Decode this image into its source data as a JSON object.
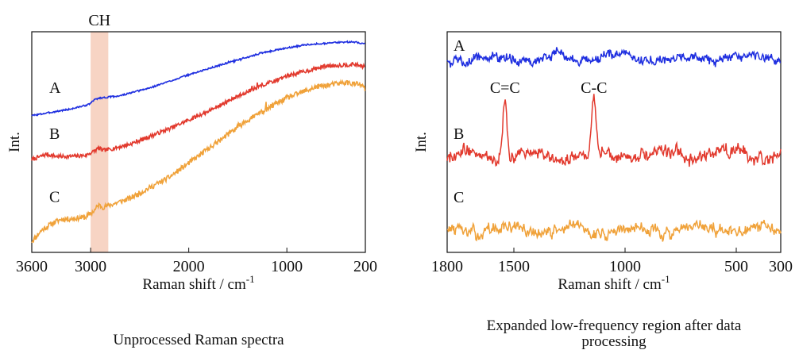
{
  "chart_data": [
    {
      "type": "line",
      "caption": "Unprocessed Raman spectra",
      "xlabel_main": "Raman shift / cm",
      "xlabel_sup": "-1",
      "ylabel": "Int.",
      "x_reversed": true,
      "xlim": [
        3600,
        200
      ],
      "ylim": [
        0,
        100
      ],
      "xticks": [
        3600,
        3000,
        2000,
        1000,
        200
      ],
      "highlight": {
        "label": "CH",
        "from": 3000,
        "to": 2820,
        "color": "#f7d4c4"
      },
      "grid": false,
      "series": [
        {
          "name": "A",
          "color": "#1f2fe0",
          "noise": 0.35,
          "seed": 3,
          "points": [
            [
              3600,
              62
            ],
            [
              3400,
              63.5
            ],
            [
              3200,
              65
            ],
            [
              3020,
              67
            ],
            [
              2950,
              69.5
            ],
            [
              2900,
              70
            ],
            [
              2850,
              70.2
            ],
            [
              2700,
              71
            ],
            [
              2400,
              74.5
            ],
            [
              2000,
              80.5
            ],
            [
              1600,
              86
            ],
            [
              1200,
              91
            ],
            [
              800,
              94.2
            ],
            [
              400,
              95.4
            ],
            [
              300,
              95.3
            ],
            [
              200,
              94.5
            ]
          ]
        },
        {
          "name": "B",
          "color": "#e23a2e",
          "noise": 0.9,
          "seed": 7,
          "points": [
            [
              3600,
              42
            ],
            [
              3450,
              44.5
            ],
            [
              3350,
              43.5
            ],
            [
              3200,
              43.5
            ],
            [
              3050,
              44
            ],
            [
              2980,
              45.5
            ],
            [
              2920,
              47.2
            ],
            [
              2870,
              46.2
            ],
            [
              2800,
              46.8
            ],
            [
              2600,
              49
            ],
            [
              2200,
              56
            ],
            [
              1800,
              64
            ],
            [
              1400,
              73
            ],
            [
              1000,
              80
            ],
            [
              600,
              84.5
            ],
            [
              300,
              85.2
            ],
            [
              200,
              84
            ]
          ]
        },
        {
          "name": "C",
          "color": "#f0a23a",
          "noise": 1.2,
          "seed": 11,
          "points": [
            [
              3600,
              5
            ],
            [
              3500,
              10
            ],
            [
              3400,
              13
            ],
            [
              3300,
              15
            ],
            [
              3200,
              15.2
            ],
            [
              3050,
              16
            ],
            [
              2960,
              19
            ],
            [
              2920,
              21.5
            ],
            [
              2870,
              20.5
            ],
            [
              2800,
              21.5
            ],
            [
              2600,
              24.5
            ],
            [
              2200,
              34
            ],
            [
              1800,
              47
            ],
            [
              1400,
              60
            ],
            [
              1000,
              70
            ],
            [
              700,
              75
            ],
            [
              400,
              77
            ],
            [
              250,
              76
            ],
            [
              200,
              74
            ]
          ]
        }
      ],
      "labels_at": [
        {
          "text": "A"
        },
        {
          "text": "B"
        },
        {
          "text": "C"
        }
      ]
    },
    {
      "type": "line",
      "caption_line1": "Expanded low-frequency region after data",
      "caption_line2": "processing",
      "xlabel_main": "Raman shift / cm",
      "xlabel_sup": "-1",
      "ylabel": "Int.",
      "x_reversed": true,
      "xlim": [
        1800,
        300
      ],
      "ylim": [
        0,
        100
      ],
      "xticks": [
        1800,
        1500,
        1000,
        500,
        300
      ],
      "grid": false,
      "peak_labels": [
        {
          "text": "C=C",
          "x": 1540
        },
        {
          "text": "C-C",
          "x": 1140
        }
      ],
      "series": [
        {
          "name": "A",
          "color": "#1f2fe0",
          "baseline": 88,
          "noise": 2.6,
          "seed": 5,
          "peaks": []
        },
        {
          "name": "B",
          "color": "#e23a2e",
          "baseline": 44,
          "noise": 3.2,
          "seed": 9,
          "peaks": [
            [
              1540,
              26,
              10
            ],
            [
              1140,
              24,
              9
            ]
          ]
        },
        {
          "name": "C",
          "color": "#f0a23a",
          "baseline": 10,
          "noise": 3.0,
          "seed": 13,
          "peaks": []
        }
      ]
    }
  ]
}
